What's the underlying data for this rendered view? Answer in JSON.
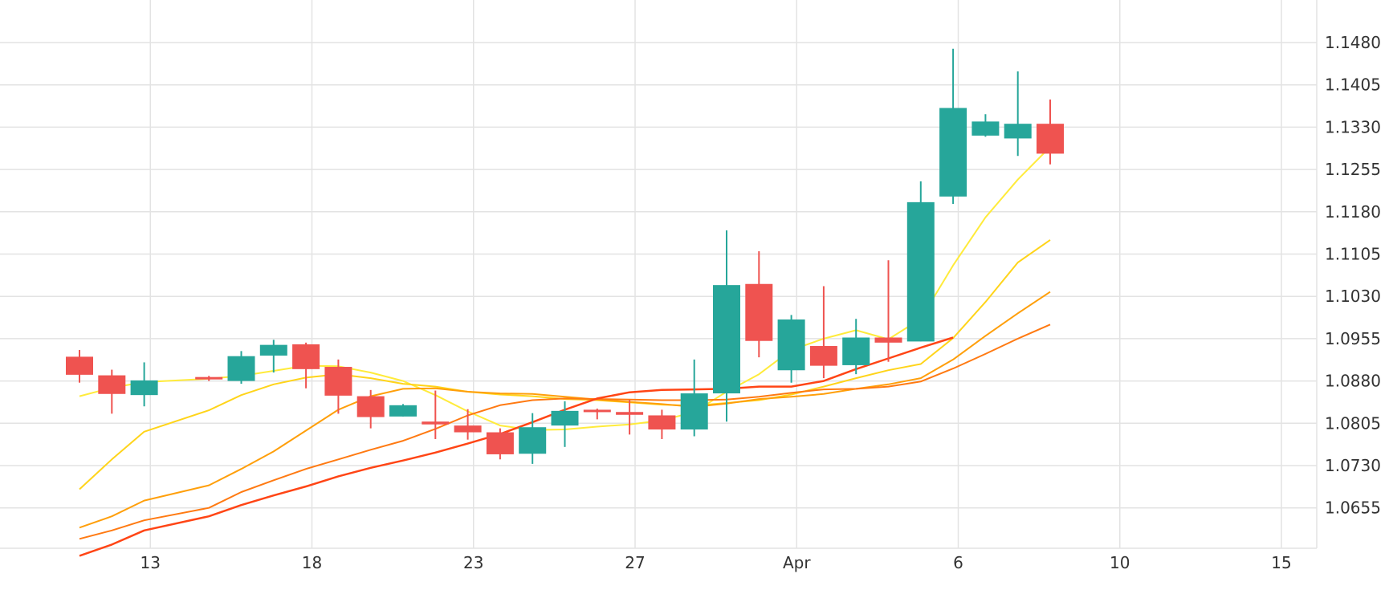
{
  "chart_data": {
    "type": "candlestick",
    "x_tick_labels": [
      "13",
      "18",
      "23",
      "27",
      "Apr",
      "6",
      "10",
      "15"
    ],
    "y_tick_labels": [
      "1.1480",
      "1.1405",
      "1.1330",
      "1.1255",
      "1.1180",
      "1.1105",
      "1.1030",
      "1.0955",
      "1.0880",
      "1.0805",
      "1.0730",
      "1.0655"
    ],
    "ylim": [
      1.0595,
      1.1535
    ],
    "grid": true,
    "colors": {
      "up": "#26a69a",
      "down": "#ef5350",
      "grid": "#e3e3e3"
    },
    "x_ticks": [
      {
        "label": "13",
        "index": 1
      },
      {
        "label": "18",
        "index": 6
      },
      {
        "label": "23",
        "index": 11
      },
      {
        "label": "27",
        "index": 16
      },
      {
        "label": "Apr",
        "index": 21
      },
      {
        "label": "6",
        "index": 26
      },
      {
        "label": "10",
        "index": 31
      },
      {
        "label": "15",
        "index": 36
      }
    ],
    "candles": [
      {
        "o": 1.0923,
        "h": 1.0935,
        "l": 1.0877,
        "c": 1.0891
      },
      {
        "o": 1.089,
        "h": 1.09,
        "l": 1.0822,
        "c": 1.0857
      },
      {
        "o": 1.0855,
        "h": 1.0913,
        "l": 1.0835,
        "c": 1.0881
      },
      {
        "o": 1.0887,
        "h": 1.0889,
        "l": 1.088,
        "c": 1.0884
      },
      {
        "o": 1.088,
        "h": 1.0933,
        "l": 1.0875,
        "c": 1.0924
      },
      {
        "o": 1.0925,
        "h": 1.0953,
        "l": 1.0895,
        "c": 1.0944
      },
      {
        "o": 1.0945,
        "h": 1.0948,
        "l": 1.0867,
        "c": 1.0901
      },
      {
        "o": 1.0905,
        "h": 1.0918,
        "l": 1.0822,
        "c": 1.0854
      },
      {
        "o": 1.0853,
        "h": 1.0864,
        "l": 1.0796,
        "c": 1.0816
      },
      {
        "o": 1.0817,
        "h": 1.0839,
        "l": 1.0817,
        "c": 1.0837
      },
      {
        "o": 1.0808,
        "h": 1.0863,
        "l": 1.0777,
        "c": 1.0803
      },
      {
        "o": 1.0801,
        "h": 1.083,
        "l": 1.0776,
        "c": 1.0789
      },
      {
        "o": 1.0789,
        "h": 1.0796,
        "l": 1.0741,
        "c": 1.075
      },
      {
        "o": 1.0751,
        "h": 1.0823,
        "l": 1.0733,
        "c": 1.0798
      },
      {
        "o": 1.0801,
        "h": 1.0844,
        "l": 1.0763,
        "c": 1.0827
      },
      {
        "o": 1.0829,
        "h": 1.0831,
        "l": 1.0812,
        "c": 1.0826
      },
      {
        "o": 1.0825,
        "h": 1.0846,
        "l": 1.0785,
        "c": 1.082
      },
      {
        "o": 1.0819,
        "h": 1.0829,
        "l": 1.0777,
        "c": 1.0794
      },
      {
        "o": 1.0794,
        "h": 1.0918,
        "l": 1.0782,
        "c": 1.0858
      },
      {
        "o": 1.0858,
        "h": 1.1147,
        "l": 1.0808,
        "c": 1.105
      },
      {
        "o": 1.1052,
        "h": 1.111,
        "l": 1.0922,
        "c": 1.0951
      },
      {
        "o": 1.0899,
        "h": 1.0997,
        "l": 1.0877,
        "c": 1.0989
      },
      {
        "o": 1.0942,
        "h": 1.1048,
        "l": 1.0885,
        "c": 1.0907
      },
      {
        "o": 1.0908,
        "h": 1.099,
        "l": 1.0892,
        "c": 1.0957
      },
      {
        "o": 1.0957,
        "h": 1.1094,
        "l": 1.0914,
        "c": 1.0948
      },
      {
        "o": 1.095,
        "h": 1.1234,
        "l": 1.095,
        "c": 1.1197
      },
      {
        "o": 1.1207,
        "h": 1.1469,
        "l": 1.1194,
        "c": 1.1364
      },
      {
        "o": 1.1315,
        "h": 1.1353,
        "l": 1.1313,
        "c": 1.134
      },
      {
        "o": 1.131,
        "h": 1.1429,
        "l": 1.1279,
        "c": 1.1336
      },
      {
        "o": 1.1336,
        "h": 1.1379,
        "l": 1.1264,
        "c": 1.1283
      }
    ],
    "moving_averages": [
      {
        "color": "#ffeb3b",
        "width": 2,
        "points": [
          [
            0,
            1.0853
          ],
          [
            1,
            1.0868
          ],
          [
            2,
            1.0878
          ],
          [
            3,
            1.0884
          ],
          [
            4,
            1.0889
          ],
          [
            5,
            1.0898
          ],
          [
            6,
            1.0907
          ],
          [
            7,
            1.0906
          ],
          [
            8,
            1.0895
          ],
          [
            9,
            1.088
          ],
          [
            10,
            1.0855
          ],
          [
            11,
            1.0826
          ],
          [
            12,
            1.0801
          ],
          [
            13,
            1.0793
          ],
          [
            14,
            1.0794
          ],
          [
            15,
            1.0799
          ],
          [
            16,
            1.0803
          ],
          [
            17,
            1.081
          ],
          [
            18,
            1.0825
          ],
          [
            19,
            1.0861
          ],
          [
            20,
            1.0892
          ],
          [
            21,
            1.0935
          ],
          [
            22,
            1.0955
          ],
          [
            23,
            1.097
          ],
          [
            24,
            1.0954
          ],
          [
            25,
            1.099
          ],
          [
            26,
            1.1085
          ],
          [
            27,
            1.117
          ],
          [
            28,
            1.1237
          ],
          [
            29,
            1.1295
          ]
        ]
      },
      {
        "color": "#ffd41a",
        "width": 2,
        "points": [
          [
            0,
            1.0688
          ],
          [
            1,
            1.0741
          ],
          [
            2,
            1.079
          ],
          [
            3,
            1.0828
          ],
          [
            4,
            1.0855
          ],
          [
            5,
            1.0874
          ],
          [
            6,
            1.0886
          ],
          [
            7,
            1.0892
          ],
          [
            8,
            1.0885
          ],
          [
            9,
            1.0875
          ],
          [
            10,
            1.087
          ],
          [
            11,
            1.0861
          ],
          [
            12,
            1.0856
          ],
          [
            13,
            1.0853
          ],
          [
            14,
            1.0848
          ],
          [
            15,
            1.0846
          ],
          [
            16,
            1.0842
          ],
          [
            17,
            1.0838
          ],
          [
            18,
            1.0836
          ],
          [
            19,
            1.0841
          ],
          [
            20,
            1.0846
          ],
          [
            21,
            1.0856
          ],
          [
            22,
            1.087
          ],
          [
            23,
            1.0885
          ],
          [
            24,
            1.0899
          ],
          [
            25,
            1.091
          ],
          [
            26,
            1.0956
          ],
          [
            27,
            1.102
          ],
          [
            28,
            1.109
          ],
          [
            29,
            1.113
          ]
        ]
      },
      {
        "color": "#ff9f0a",
        "width": 2,
        "points": [
          [
            0,
            1.062
          ],
          [
            1,
            1.064
          ],
          [
            2,
            1.0668
          ],
          [
            3,
            1.0695
          ],
          [
            4,
            1.0724
          ],
          [
            5,
            1.0755
          ],
          [
            6,
            1.0792
          ],
          [
            7,
            1.0829
          ],
          [
            8,
            1.0853
          ],
          [
            9,
            1.0866
          ],
          [
            10,
            1.0867
          ],
          [
            11,
            1.0861
          ],
          [
            12,
            1.0858
          ],
          [
            13,
            1.0857
          ],
          [
            14,
            1.0852
          ],
          [
            15,
            1.0847
          ],
          [
            16,
            1.0843
          ],
          [
            17,
            1.0839
          ],
          [
            18,
            1.0834
          ],
          [
            19,
            1.084
          ],
          [
            20,
            1.0848
          ],
          [
            21,
            1.0852
          ],
          [
            22,
            1.0857
          ],
          [
            23,
            1.0866
          ],
          [
            24,
            1.0874
          ],
          [
            25,
            1.0885
          ],
          [
            26,
            1.0918
          ],
          [
            27,
            1.096
          ],
          [
            28,
            1.1
          ],
          [
            29,
            1.1038
          ]
        ]
      },
      {
        "color": "#ff7a12",
        "width": 2,
        "points": [
          [
            0,
            1.06
          ],
          [
            1,
            1.0615
          ],
          [
            2,
            1.0633
          ],
          [
            3,
            1.0655
          ],
          [
            4,
            1.0683
          ],
          [
            5,
            1.0704
          ],
          [
            6,
            1.0724
          ],
          [
            7,
            1.0741
          ],
          [
            8,
            1.0758
          ],
          [
            9,
            1.0774
          ],
          [
            10,
            1.0795
          ],
          [
            11,
            1.0819
          ],
          [
            12,
            1.0837
          ],
          [
            13,
            1.0846
          ],
          [
            14,
            1.0849
          ],
          [
            15,
            1.0848
          ],
          [
            16,
            1.0847
          ],
          [
            17,
            1.0846
          ],
          [
            18,
            1.0846
          ],
          [
            19,
            1.0847
          ],
          [
            20,
            1.0852
          ],
          [
            21,
            1.0859
          ],
          [
            22,
            1.0865
          ],
          [
            23,
            1.0866
          ],
          [
            24,
            1.087
          ],
          [
            25,
            1.0879
          ],
          [
            26,
            1.0902
          ],
          [
            27,
            1.0928
          ],
          [
            28,
            1.0955
          ],
          [
            29,
            1.098
          ]
        ]
      },
      {
        "color": "#ff4515",
        "width": 2.5,
        "points": [
          [
            0,
            1.057
          ],
          [
            1,
            1.059
          ],
          [
            2,
            1.0615
          ],
          [
            3,
            1.064
          ],
          [
            4,
            1.066
          ],
          [
            5,
            1.0677
          ],
          [
            6,
            1.0693
          ],
          [
            7,
            1.0711
          ],
          [
            8,
            1.0726
          ],
          [
            9,
            1.0739
          ],
          [
            10,
            1.0753
          ],
          [
            11,
            1.0769
          ],
          [
            12,
            1.0786
          ],
          [
            13,
            1.0807
          ],
          [
            14,
            1.0829
          ],
          [
            15,
            1.0849
          ],
          [
            16,
            1.086
          ],
          [
            17,
            1.0864
          ],
          [
            18,
            1.0865
          ],
          [
            19,
            1.0866
          ],
          [
            20,
            1.087
          ],
          [
            21,
            1.087
          ],
          [
            22,
            1.088
          ],
          [
            23,
            1.0901
          ],
          [
            24,
            1.092
          ],
          [
            25,
            1.0939
          ],
          [
            26,
            1.0957
          ]
        ]
      }
    ]
  }
}
